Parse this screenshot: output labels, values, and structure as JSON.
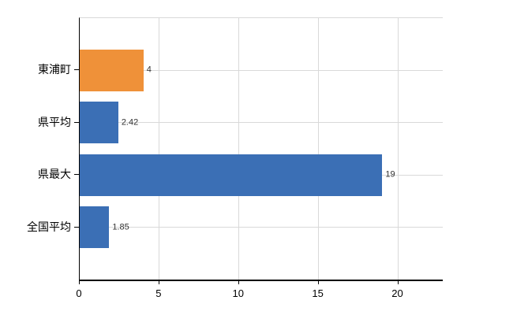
{
  "chart_data": {
    "type": "bar",
    "orientation": "horizontal",
    "title": "",
    "xlabel": "",
    "ylabel": "",
    "categories": [
      "東浦町",
      "県平均",
      "県最大",
      "全国平均"
    ],
    "values": [
      4,
      2.42,
      19,
      1.85
    ],
    "value_labels": [
      "4",
      "2.42",
      "19",
      "1.85"
    ],
    "bar_colors": [
      "#EF9139",
      "#3B6FB5",
      "#3B6FB5",
      "#3B6FB5"
    ],
    "x_ticks": [
      0,
      5,
      10,
      15,
      20
    ],
    "x_tick_labels": [
      "0",
      "5",
      "10",
      "15",
      "20"
    ],
    "xlim": [
      0,
      22.8
    ],
    "grid": true,
    "legend": false
  },
  "colors": {
    "bar_blue": "#3B6FB5",
    "bar_orange": "#EF9139",
    "grid": "#D9D9D9",
    "axis": "#000000",
    "tick_text": "#000000",
    "value_text": "#333333",
    "background": "#FFFFFF"
  }
}
